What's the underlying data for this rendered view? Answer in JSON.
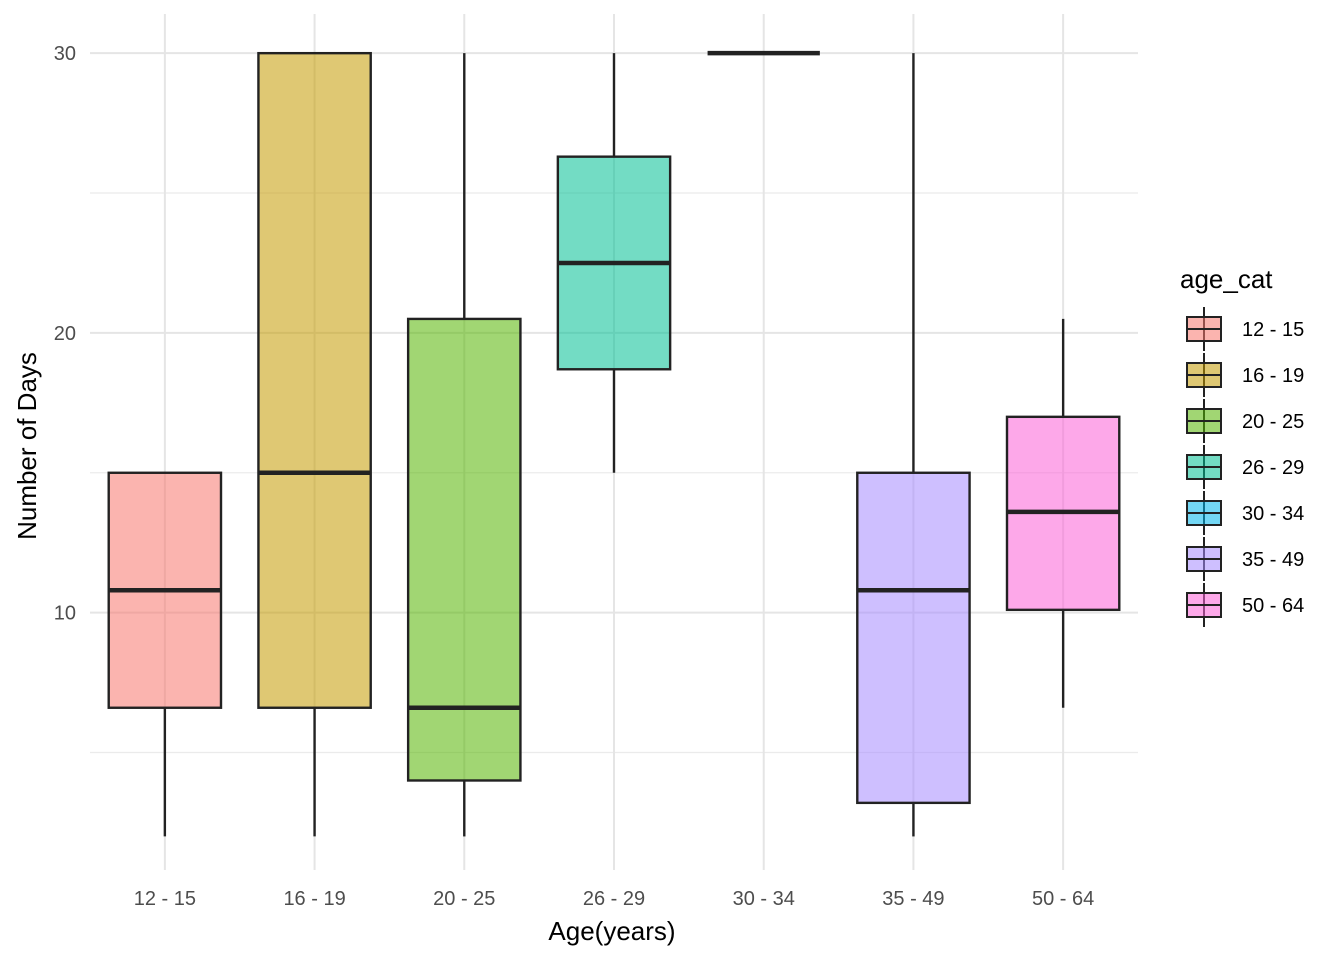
{
  "chart_data": {
    "type": "boxplot",
    "xlabel": "Age(years)",
    "ylabel": "Number of Days",
    "ylim": [
      0.8,
      31.4
    ],
    "y_ticks": [
      10,
      20,
      30
    ],
    "y_minor_ticks": [
      5,
      15,
      25
    ],
    "grid": true,
    "legend_title": "age_cat",
    "legend_position": "right",
    "categories": [
      "12 - 15",
      "16 - 19",
      "20 - 25",
      "26 - 29",
      "30 - 34",
      "35 - 49",
      "50 - 64"
    ],
    "series": [
      {
        "name": "12 - 15",
        "color": "#F8766D",
        "min": 2,
        "q1": 6.6,
        "median": 10.8,
        "q3": 15,
        "max": 15
      },
      {
        "name": "16 - 19",
        "color": "#C49A00",
        "min": 2,
        "q1": 6.6,
        "median": 15,
        "q3": 30,
        "max": 30
      },
      {
        "name": "20 - 25",
        "color": "#53B400",
        "min": 2,
        "q1": 4,
        "median": 6.6,
        "q3": 20.5,
        "max": 30
      },
      {
        "name": "26 - 29",
        "color": "#00C094",
        "min": 15,
        "q1": 18.7,
        "median": 22.5,
        "q3": 26.3,
        "max": 30
      },
      {
        "name": "30 - 34",
        "color": "#00B6EB",
        "min": 30,
        "q1": 30,
        "median": 30,
        "q3": 30,
        "max": 30
      },
      {
        "name": "35 - 49",
        "color": "#A58AFF",
        "min": 2,
        "q1": 3.2,
        "median": 10.8,
        "q3": 15,
        "max": 30
      },
      {
        "name": "50 - 64",
        "color": "#FB61D7",
        "min": 6.6,
        "q1": 10.1,
        "median": 13.6,
        "q3": 17,
        "max": 20.5
      }
    ]
  }
}
